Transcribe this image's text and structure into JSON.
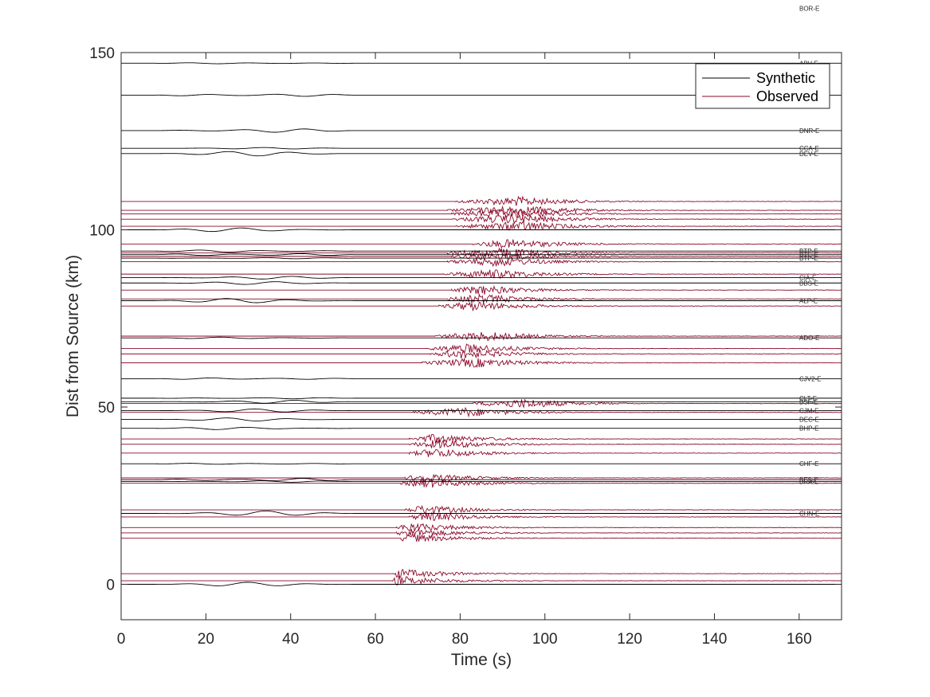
{
  "chart_data": {
    "type": "line",
    "xlabel": "Time (s)",
    "ylabel": "Dist from Source (km)",
    "xlim": [
      0,
      170
    ],
    "ylim": [
      -10,
      150
    ],
    "xticks": [
      0,
      20,
      40,
      60,
      80,
      100,
      120,
      140,
      160
    ],
    "yticks": [
      0,
      50,
      100,
      150
    ],
    "grid": false,
    "legend_position": "top-right",
    "series": [
      {
        "name": "Synthetic",
        "color": "#000000"
      },
      {
        "name": "Observed",
        "color": "#8b0a2a"
      }
    ],
    "stations": [
      {
        "label": "BOR-E",
        "dist": 162.5
      },
      {
        "label": "ABV-E",
        "dist": 147
      },
      {
        "label": "DNR-E",
        "dist": 128
      },
      {
        "label": "CCA-E",
        "dist": 123
      },
      {
        "label": "DEV-E",
        "dist": 121.5
      },
      {
        "label": "BTP-E",
        "dist": 94
      },
      {
        "label": "BTC-E",
        "dist": 93
      },
      {
        "label": "BTP-E",
        "dist": 92
      },
      {
        "label": "CIA-E",
        "dist": 86.5
      },
      {
        "label": "BBS-E",
        "dist": 85
      },
      {
        "label": "ALP-E",
        "dist": 80
      },
      {
        "label": "ADO-E",
        "dist": 69.5
      },
      {
        "label": "CJV2-E",
        "dist": 58
      },
      {
        "label": "CLT-E",
        "dist": 52.5
      },
      {
        "label": "BSF-E",
        "dist": 51.5
      },
      {
        "label": "CJM-E",
        "dist": 49
      },
      {
        "label": "DEC-E",
        "dist": 46.5
      },
      {
        "label": "BHP-E",
        "dist": 44
      },
      {
        "label": "CHF-E",
        "dist": 34
      },
      {
        "label": "BES-E",
        "dist": 29.5
      },
      {
        "label": "BRA-E",
        "dist": 29
      },
      {
        "label": "CHN-E",
        "dist": 20
      }
    ],
    "synthetic_traces": [
      147,
      138,
      128,
      123,
      121.5,
      100,
      94,
      93,
      92,
      86.5,
      85,
      80,
      69.5,
      58,
      52.5,
      51.5,
      49,
      46.5,
      44,
      34,
      29.5,
      29,
      20,
      0
    ],
    "observed_traces": [
      {
        "dist": 108,
        "onset": 79,
        "peak": 94
      },
      {
        "dist": 105.5,
        "onset": 77,
        "peak": 95
      },
      {
        "dist": 104.5,
        "onset": 78,
        "peak": 92
      },
      {
        "dist": 103,
        "onset": 78,
        "peak": 93
      },
      {
        "dist": 101,
        "onset": 79,
        "peak": 95
      },
      {
        "dist": 96,
        "onset": 83,
        "peak": 92
      },
      {
        "dist": 93.5,
        "onset": 77,
        "peak": 90
      },
      {
        "dist": 92.5,
        "onset": 78,
        "peak": 89
      },
      {
        "dist": 91,
        "onset": 77,
        "peak": 89
      },
      {
        "dist": 87.5,
        "onset": 76,
        "peak": 88
      },
      {
        "dist": 83,
        "onset": 78,
        "peak": 85
      },
      {
        "dist": 80.5,
        "onset": 77,
        "peak": 85
      },
      {
        "dist": 78.5,
        "onset": 75,
        "peak": 83
      },
      {
        "dist": 70,
        "onset": 74,
        "peak": 86
      },
      {
        "dist": 66.5,
        "onset": 72,
        "peak": 82
      },
      {
        "dist": 65,
        "onset": 73,
        "peak": 81
      },
      {
        "dist": 62.5,
        "onset": 71,
        "peak": 84
      },
      {
        "dist": 51,
        "onset": 83,
        "peak": 95
      },
      {
        "dist": 48.5,
        "onset": 69,
        "peak": 81
      },
      {
        "dist": 41,
        "onset": 68,
        "peak": 74
      },
      {
        "dist": 39.5,
        "onset": 68,
        "peak": 75
      },
      {
        "dist": 37,
        "onset": 68,
        "peak": 74
      },
      {
        "dist": 30,
        "onset": 67,
        "peak": 71
      },
      {
        "dist": 28.5,
        "onset": 66,
        "peak": 72
      },
      {
        "dist": 21,
        "onset": 67,
        "peak": 71
      },
      {
        "dist": 19,
        "onset": 68,
        "peak": 72
      },
      {
        "dist": 16,
        "onset": 65,
        "peak": 68
      },
      {
        "dist": 14.5,
        "onset": 65,
        "peak": 68
      },
      {
        "dist": 13,
        "onset": 66,
        "peak": 67
      },
      {
        "dist": 3,
        "onset": 64,
        "peak": 65
      },
      {
        "dist": 1,
        "onset": 64,
        "peak": 65
      }
    ]
  }
}
